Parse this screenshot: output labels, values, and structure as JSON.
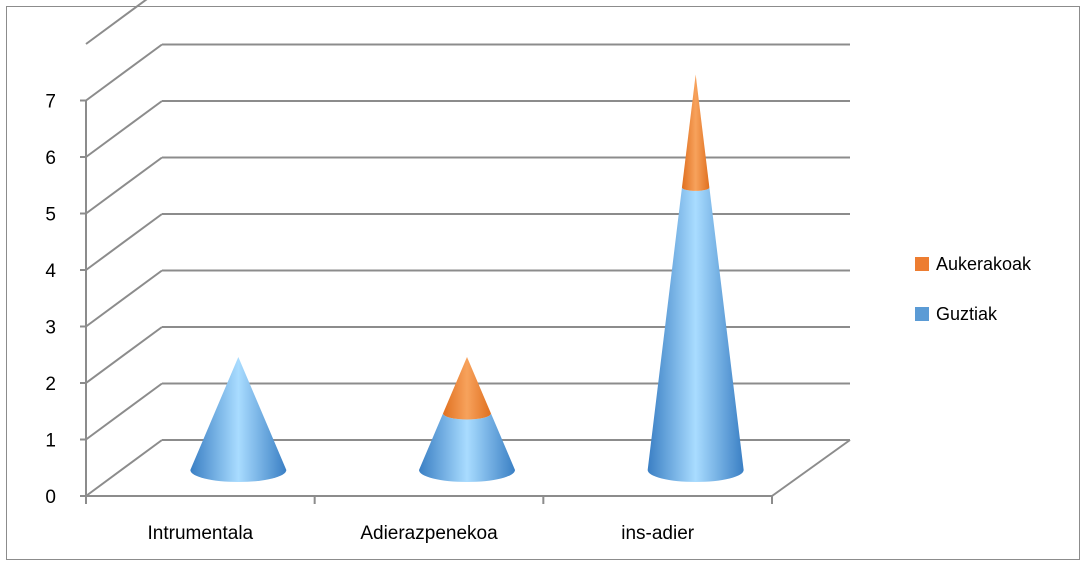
{
  "chart_data": {
    "type": "bar",
    "subtype": "3d-stacked-cone",
    "title": "",
    "xlabel": "",
    "ylabel": "",
    "categories": [
      "Intrumentala",
      "Adierazpenekoa",
      "ins-adier"
    ],
    "series": [
      {
        "name": "Guztiak",
        "values": [
          2,
          1,
          5
        ],
        "color": "#5b9bd5"
      },
      {
        "name": "Aukerakoak",
        "values": [
          0,
          1,
          2
        ],
        "color": "#ed7d31"
      }
    ],
    "ylim": [
      0,
      7
    ],
    "yticks": [
      "0",
      "1",
      "2",
      "3",
      "4",
      "5",
      "6",
      "7"
    ],
    "grid": true,
    "legend_position": "right"
  }
}
